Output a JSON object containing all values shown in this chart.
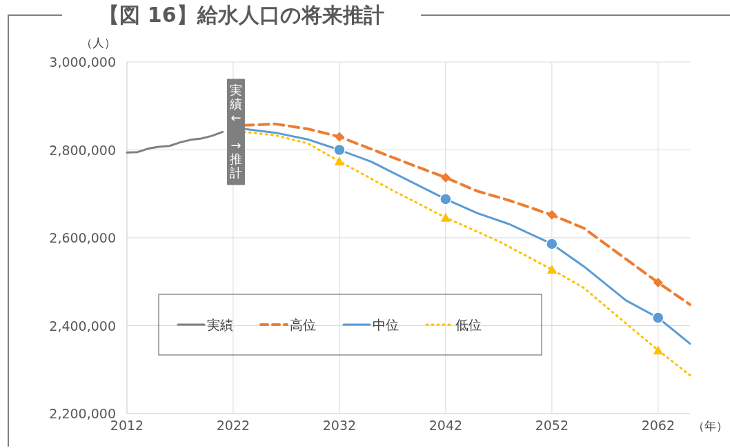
{
  "chart_data": {
    "type": "line",
    "title": "【図 16】給水人口の将来推計",
    "ylabel": "（人）",
    "xlabel": "（年）",
    "xlim": [
      2012,
      2065
    ],
    "xticks": [
      2012,
      2022,
      2032,
      2042,
      2052,
      2062
    ],
    "ylim": [
      2200000,
      3000000
    ],
    "yticks": [
      {
        "value": 2200000,
        "label": "2,200,000"
      },
      {
        "value": 2400000,
        "label": "2,400,000"
      },
      {
        "value": 2600000,
        "label": "2,600,000"
      },
      {
        "value": 2800000,
        "label": "2,800,000"
      },
      {
        "value": 3000000,
        "label": "3,000,000"
      }
    ],
    "grid": true,
    "legend": "bottom left",
    "annotations": [
      "実績← →推計"
    ],
    "series": [
      {
        "name": "実績",
        "color": "#7f7f7f",
        "line_style": "solid",
        "x": [
          2012,
          2013,
          2014,
          2015,
          2016,
          2017,
          2018,
          2019,
          2020,
          2021
        ],
        "values": [
          2794000,
          2795000,
          2803000,
          2807000,
          2809000,
          2817000,
          2823000,
          2826000,
          2832000,
          2841000
        ]
      },
      {
        "name": "高位",
        "color": "#ed7d31",
        "line_style": "dashed",
        "x": [
          2023,
          2026,
          2029,
          2032,
          2037,
          2042,
          2045,
          2048,
          2052,
          2055,
          2058,
          2062,
          2065
        ],
        "values": [
          2856000,
          2859000,
          2848000,
          2830000,
          2783000,
          2737000,
          2706000,
          2685000,
          2652000,
          2622000,
          2569000,
          2498000,
          2448000
        ]
      },
      {
        "name": "中位",
        "color": "#5b9bd5",
        "line_style": "solid",
        "x": [
          2023,
          2026,
          2029,
          2032,
          2035,
          2042,
          2045,
          2048,
          2052,
          2055,
          2059,
          2062,
          2065
        ],
        "values": [
          2848000,
          2839000,
          2824000,
          2800000,
          2773000,
          2688000,
          2656000,
          2631000,
          2586000,
          2535000,
          2457000,
          2418000,
          2359000
        ]
      },
      {
        "name": "低位",
        "color": "#ffc000",
        "line_style": "dotted",
        "x": [
          2023,
          2026,
          2029,
          2032,
          2037,
          2042,
          2047,
          2052,
          2055,
          2058,
          2062,
          2065
        ],
        "values": [
          2841000,
          2833000,
          2815000,
          2774000,
          2708000,
          2646000,
          2592000,
          2528000,
          2486000,
          2425000,
          2344000,
          2287000
        ]
      },
      {
        "type": "scatter",
        "marker": "diamond",
        "color": "#ed7d31",
        "x": [
          2032,
          2042,
          2052,
          2062
        ],
        "values": [
          2830000,
          2737000,
          2652000,
          2498000
        ]
      },
      {
        "type": "scatter",
        "marker": "circle",
        "color": "#5b9bd5",
        "x": [
          2032,
          2042,
          2052,
          2062
        ],
        "values": [
          2800000,
          2688000,
          2586000,
          2418000
        ]
      },
      {
        "type": "scatter",
        "marker": "triangle",
        "color": "#ffc000",
        "x": [
          2032,
          2042,
          2052,
          2062
        ],
        "values": [
          2774000,
          2646000,
          2528000,
          2344000
        ]
      }
    ]
  }
}
